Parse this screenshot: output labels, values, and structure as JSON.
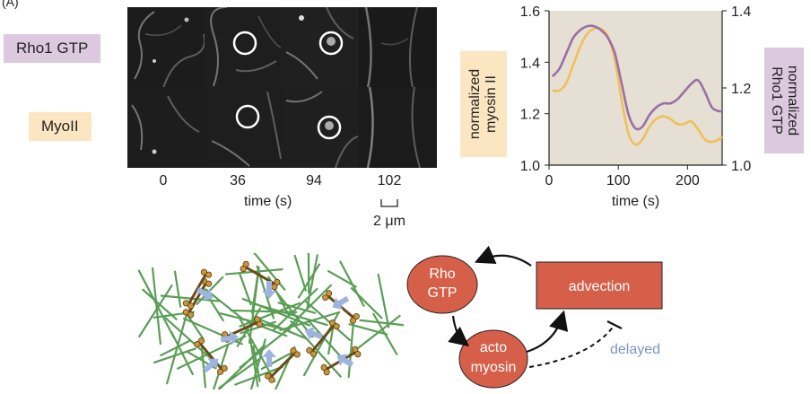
{
  "panel": {
    "label": "(A)"
  },
  "row_labels": {
    "rho": "Rho1 GTP",
    "myo": "MyoII"
  },
  "microscopy": {
    "times": [
      "0",
      "36",
      "94",
      "102"
    ],
    "xlabel": "time (s)",
    "scale_bar": "2 μm"
  },
  "chart_data": {
    "type": "line",
    "xlabel": "time (s)",
    "ylabel_left": "normalized myosin II",
    "ylabel_right": "normalized Rho1 GTP",
    "xlim": [
      0,
      250
    ],
    "ylim_left": [
      1.0,
      1.6
    ],
    "ylim_right": [
      1.0,
      1.4
    ],
    "x_ticks": [
      "0",
      "100",
      "200"
    ],
    "y_ticks_left": [
      "1.0",
      "1.2",
      "1.4",
      "1.6"
    ],
    "y_ticks_right": [
      "1.0",
      "1.2",
      "1.4"
    ],
    "background": "#e6dfd3",
    "series": [
      {
        "axis": "left",
        "color": "#eec05a",
        "x": [
          5,
          15,
          25,
          35,
          45,
          55,
          65,
          75,
          85,
          95,
          105,
          115,
          125,
          135,
          145,
          155,
          165,
          175,
          185,
          195,
          205,
          215,
          225,
          235,
          245,
          250
        ],
        "y": [
          1.29,
          1.29,
          1.32,
          1.39,
          1.46,
          1.51,
          1.53,
          1.53,
          1.5,
          1.41,
          1.25,
          1.12,
          1.08,
          1.1,
          1.15,
          1.18,
          1.19,
          1.18,
          1.16,
          1.16,
          1.17,
          1.14,
          1.1,
          1.09,
          1.1,
          1.11
        ]
      },
      {
        "axis": "right",
        "color": "#9a6fa5",
        "x": [
          5,
          15,
          25,
          35,
          45,
          55,
          65,
          75,
          85,
          95,
          105,
          115,
          125,
          135,
          145,
          155,
          165,
          175,
          185,
          195,
          205,
          215,
          225,
          235,
          245,
          250
        ],
        "y": [
          1.23,
          1.25,
          1.29,
          1.33,
          1.35,
          1.36,
          1.36,
          1.35,
          1.33,
          1.29,
          1.21,
          1.13,
          1.095,
          1.1,
          1.13,
          1.15,
          1.16,
          1.16,
          1.17,
          1.19,
          1.21,
          1.22,
          1.19,
          1.15,
          1.14,
          1.14
        ]
      }
    ]
  },
  "network": {
    "filament_color": "#5a9e55",
    "motor_color": "#c8963c",
    "arrow_color": "#9db4e0"
  },
  "loop": {
    "node_color": "#d65f4a",
    "rho_lines": [
      "Rho",
      "GTP"
    ],
    "acto_lines": [
      "acto",
      "myosin"
    ],
    "advection": "advection",
    "delayed": "delayed",
    "delayed_color": "#7b95c6"
  }
}
